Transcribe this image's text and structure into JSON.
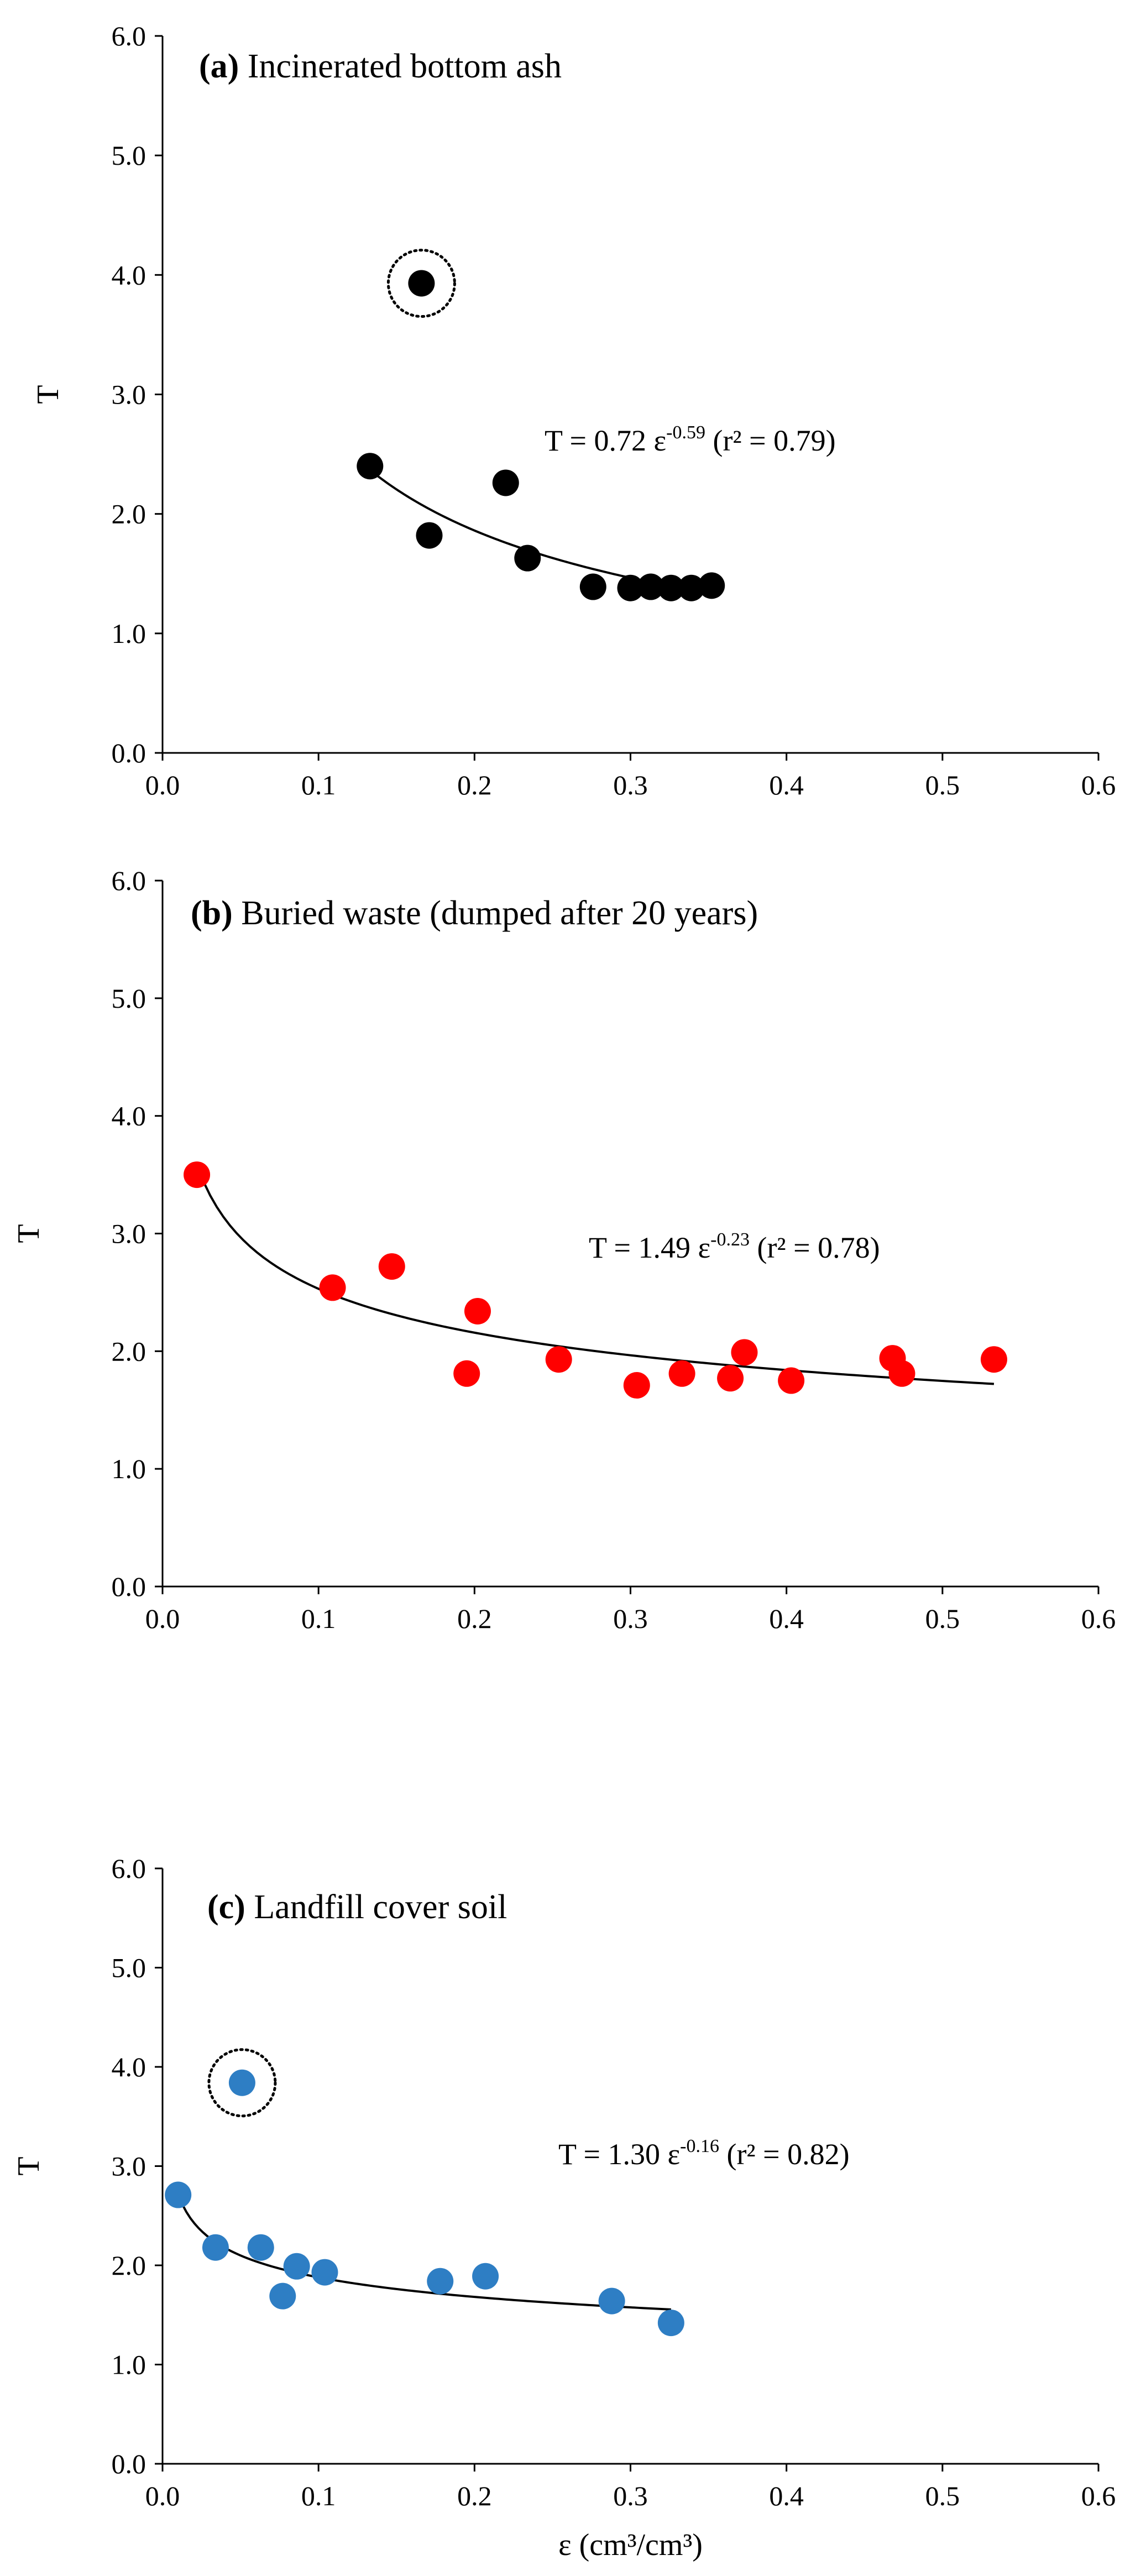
{
  "chart_data": [
    {
      "type": "scatter",
      "panel_id": "(a)",
      "title": "Incinerated bottom ash",
      "xlabel": "",
      "ylabel": "T",
      "xlim": [
        0,
        0.6
      ],
      "ylim": [
        0,
        6
      ],
      "xticks": [
        "0.0",
        "0.1",
        "0.2",
        "0.3",
        "0.4",
        "0.5",
        "0.6"
      ],
      "yticks": [
        "0.0",
        "1.0",
        "2.0",
        "3.0",
        "4.0",
        "5.0",
        "6.0"
      ],
      "grid": false,
      "marker_color": "#000000",
      "points": [
        {
          "x": 0.133,
          "y": 2.4
        },
        {
          "x": 0.171,
          "y": 1.82
        },
        {
          "x": 0.22,
          "y": 2.26
        },
        {
          "x": 0.234,
          "y": 1.63
        },
        {
          "x": 0.276,
          "y": 1.39
        },
        {
          "x": 0.3,
          "y": 1.38
        },
        {
          "x": 0.313,
          "y": 1.39
        },
        {
          "x": 0.326,
          "y": 1.38
        },
        {
          "x": 0.339,
          "y": 1.38
        },
        {
          "x": 0.352,
          "y": 1.4
        }
      ],
      "outliers": [
        {
          "x": 0.166,
          "y": 3.93
        }
      ],
      "fit": {
        "a": 0.72,
        "b": -0.59,
        "x_range": [
          0.133,
          0.352
        ],
        "label_prefix": "T = 0.72 ε",
        "label_exp": "-0.59",
        "label_suffix": " (r² = 0.79)"
      }
    },
    {
      "type": "scatter",
      "panel_id": "(b)",
      "title": "Buried waste (dumped after 20 years)",
      "xlabel": "",
      "ylabel": "T",
      "xlim": [
        0,
        0.6
      ],
      "ylim": [
        0,
        6
      ],
      "xticks": [
        "0.0",
        "0.1",
        "0.2",
        "0.3",
        "0.4",
        "0.5",
        "0.6"
      ],
      "yticks": [
        "0.0",
        "1.0",
        "2.0",
        "3.0",
        "4.0",
        "5.0",
        "6.0"
      ],
      "grid": false,
      "marker_color": "#ff0000",
      "points": [
        {
          "x": 0.022,
          "y": 3.5
        },
        {
          "x": 0.109,
          "y": 2.54
        },
        {
          "x": 0.147,
          "y": 2.72
        },
        {
          "x": 0.195,
          "y": 1.81
        },
        {
          "x": 0.202,
          "y": 2.34
        },
        {
          "x": 0.254,
          "y": 1.93
        },
        {
          "x": 0.304,
          "y": 1.71
        },
        {
          "x": 0.333,
          "y": 1.81
        },
        {
          "x": 0.364,
          "y": 1.77
        },
        {
          "x": 0.373,
          "y": 1.99
        },
        {
          "x": 0.403,
          "y": 1.75
        },
        {
          "x": 0.468,
          "y": 1.94
        },
        {
          "x": 0.474,
          "y": 1.81
        },
        {
          "x": 0.533,
          "y": 1.93
        }
      ],
      "outliers": [],
      "fit": {
        "a": 1.49,
        "b": -0.23,
        "x_range": [
          0.022,
          0.533
        ],
        "label_prefix": "T = 1.49 ε",
        "label_exp": "-0.23",
        "label_suffix": " (r² = 0.78)"
      }
    },
    {
      "type": "scatter",
      "panel_id": "(c)",
      "title": "Landfill cover soil",
      "xlabel": "ε (cm³/cm³)",
      "ylabel": "T",
      "xlim": [
        0,
        0.6
      ],
      "ylim": [
        0,
        6
      ],
      "xticks": [
        "0.0",
        "0.1",
        "0.2",
        "0.3",
        "0.4",
        "0.5",
        "0.6"
      ],
      "yticks": [
        "0.0",
        "1.0",
        "2.0",
        "3.0",
        "4.0",
        "5.0",
        "6.0"
      ],
      "grid": false,
      "marker_color": "#2e7ec4",
      "points": [
        {
          "x": 0.01,
          "y": 2.71
        },
        {
          "x": 0.034,
          "y": 2.18
        },
        {
          "x": 0.063,
          "y": 2.18
        },
        {
          "x": 0.077,
          "y": 1.69
        },
        {
          "x": 0.086,
          "y": 1.99
        },
        {
          "x": 0.104,
          "y": 1.93
        },
        {
          "x": 0.178,
          "y": 1.84
        },
        {
          "x": 0.207,
          "y": 1.89
        },
        {
          "x": 0.288,
          "y": 1.64
        },
        {
          "x": 0.326,
          "y": 1.42
        }
      ],
      "outliers": [
        {
          "x": 0.051,
          "y": 3.84
        }
      ],
      "fit": {
        "a": 1.3,
        "b": -0.16,
        "x_range": [
          0.01,
          0.326
        ],
        "label_prefix": "T = 1.30 ε",
        "label_exp": "-0.16",
        "label_suffix": " (r² = 0.82)"
      }
    }
  ]
}
